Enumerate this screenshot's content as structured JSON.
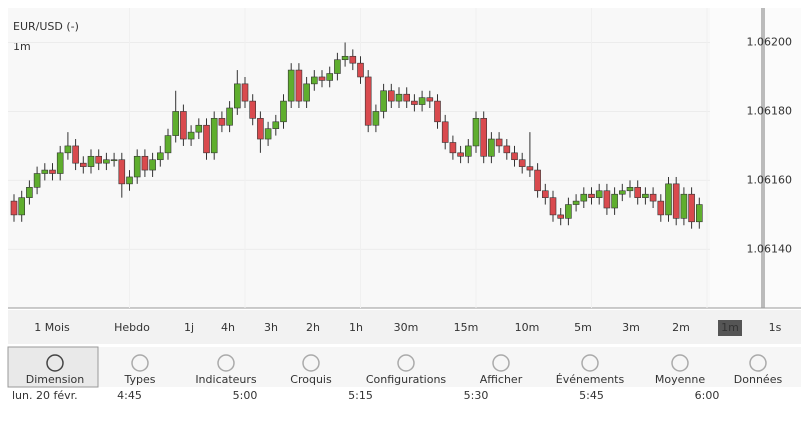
{
  "chart_data": {
    "type": "candlestick",
    "title": "EUR/USD (-)",
    "interval": "1m",
    "open": [
      1.06154,
      1.0615,
      1.06155,
      1.06158,
      1.06162,
      1.06163,
      1.06162,
      1.06168,
      1.0617,
      1.06165,
      1.06164,
      1.06167,
      1.06165,
      1.06166,
      1.06166,
      1.06159,
      1.06161,
      1.06167,
      1.06163,
      1.06166,
      1.06168,
      1.06173,
      1.0618,
      1.06172,
      1.06174,
      1.06176,
      1.06168,
      1.06178,
      1.06176,
      1.06181,
      1.06188,
      1.06183,
      1.06178,
      1.06172,
      1.06175,
      1.06177,
      1.06183,
      1.06192,
      1.06183,
      1.06188,
      1.0619,
      1.06189,
      1.06191,
      1.06195,
      1.06196,
      1.06194,
      1.0619,
      1.06176,
      1.0618,
      1.06186,
      1.06183,
      1.06185,
      1.06183,
      1.06182,
      1.06184,
      1.06183,
      1.06177,
      1.06171,
      1.06168,
      1.06167,
      1.0617,
      1.06178,
      1.06167,
      1.06172,
      1.0617,
      1.06168,
      1.06166,
      1.06164,
      1.06163,
      1.06157,
      1.06155,
      1.0615,
      1.06149,
      1.06153,
      1.06154,
      1.06156,
      1.06155,
      1.06157,
      1.06152,
      1.06156,
      1.06157,
      1.06158,
      1.06155,
      1.06156,
      1.06154,
      1.0615,
      1.06159,
      1.06149,
      1.06156,
      1.06148
    ],
    "high": [
      1.06156,
      1.06157,
      1.0616,
      1.06164,
      1.06165,
      1.06165,
      1.0617,
      1.06174,
      1.06172,
      1.06167,
      1.06169,
      1.06169,
      1.06168,
      1.06168,
      1.06168,
      1.06163,
      1.06169,
      1.06169,
      1.06168,
      1.0617,
      1.06175,
      1.06186,
      1.06182,
      1.06176,
      1.06178,
      1.06178,
      1.0618,
      1.0618,
      1.06183,
      1.06192,
      1.0619,
      1.06185,
      1.0618,
      1.06177,
      1.06179,
      1.06185,
      1.06194,
      1.06194,
      1.0619,
      1.06192,
      1.06192,
      1.06193,
      1.06197,
      1.062,
      1.06198,
      1.06196,
      1.06192,
      1.06182,
      1.06188,
      1.06188,
      1.06187,
      1.06187,
      1.06185,
      1.06186,
      1.06186,
      1.06185,
      1.06179,
      1.06173,
      1.0617,
      1.06172,
      1.0618,
      1.0618,
      1.06174,
      1.06174,
      1.06172,
      1.0617,
      1.06168,
      1.06174,
      1.06165,
      1.06159,
      1.06157,
      1.06152,
      1.06155,
      1.06156,
      1.06158,
      1.06158,
      1.06159,
      1.06159,
      1.06158,
      1.06159,
      1.0616,
      1.0616,
      1.06158,
      1.06158,
      1.06156,
      1.06161,
      1.06161,
      1.06158,
      1.06158,
      1.06155
    ],
    "low": [
      1.06148,
      1.06148,
      1.06153,
      1.06156,
      1.0616,
      1.0616,
      1.0616,
      1.06166,
      1.06163,
      1.06162,
      1.06162,
      1.06163,
      1.06163,
      1.06164,
      1.06155,
      1.06157,
      1.06159,
      1.06161,
      1.06161,
      1.06164,
      1.06166,
      1.06171,
      1.0617,
      1.0617,
      1.06172,
      1.06166,
      1.06166,
      1.06174,
      1.06174,
      1.06179,
      1.06181,
      1.06176,
      1.06168,
      1.0617,
      1.06173,
      1.06175,
      1.06181,
      1.06181,
      1.06181,
      1.06186,
      1.06187,
      1.06187,
      1.06189,
      1.06193,
      1.06192,
      1.06188,
      1.06174,
      1.06174,
      1.06178,
      1.06181,
      1.06181,
      1.06181,
      1.0618,
      1.0618,
      1.06181,
      1.06175,
      1.06169,
      1.06166,
      1.06165,
      1.06165,
      1.06168,
      1.06165,
      1.06165,
      1.06168,
      1.06166,
      1.06164,
      1.06162,
      1.06161,
      1.06155,
      1.06153,
      1.06148,
      1.06147,
      1.06147,
      1.06151,
      1.06152,
      1.06153,
      1.06153,
      1.0615,
      1.0615,
      1.06154,
      1.06155,
      1.06153,
      1.06153,
      1.06152,
      1.06148,
      1.06148,
      1.06147,
      1.06147,
      1.06146,
      1.06146
    ],
    "close": [
      1.0615,
      1.06155,
      1.06158,
      1.06162,
      1.06163,
      1.06162,
      1.06168,
      1.0617,
      1.06165,
      1.06164,
      1.06167,
      1.06165,
      1.06166,
      1.06166,
      1.06159,
      1.06161,
      1.06167,
      1.06163,
      1.06166,
      1.06168,
      1.06173,
      1.0618,
      1.06172,
      1.06174,
      1.06176,
      1.06168,
      1.06178,
      1.06176,
      1.06181,
      1.06188,
      1.06183,
      1.06178,
      1.06172,
      1.06175,
      1.06177,
      1.06183,
      1.06192,
      1.06183,
      1.06188,
      1.0619,
      1.06189,
      1.06191,
      1.06195,
      1.06196,
      1.06194,
      1.0619,
      1.06176,
      1.0618,
      1.06186,
      1.06183,
      1.06185,
      1.06183,
      1.06182,
      1.06184,
      1.06183,
      1.06177,
      1.06171,
      1.06168,
      1.06167,
      1.0617,
      1.06178,
      1.06167,
      1.06172,
      1.0617,
      1.06168,
      1.06166,
      1.06164,
      1.06163,
      1.06157,
      1.06155,
      1.0615,
      1.06149,
      1.06153,
      1.06154,
      1.06156,
      1.06155,
      1.06157,
      1.06152,
      1.06156,
      1.06157,
      1.06158,
      1.06155,
      1.06156,
      1.06154,
      1.0615,
      1.06159,
      1.06149,
      1.06156,
      1.06148,
      1.06153
    ],
    "up_color": "#5fae2e",
    "down_color": "#d94a4e",
    "ylim": [
      1.06123,
      1.0621
    ],
    "yticks": [
      {
        "value": 1.062,
        "label": "1.06200"
      },
      {
        "value": 1.0618,
        "label": "1.06180"
      },
      {
        "value": 1.0616,
        "label": "1.06160"
      },
      {
        "value": 1.0614,
        "label": "1.06140"
      }
    ],
    "xticks": [
      {
        "value": 15,
        "label": "4:45"
      },
      {
        "value": 30,
        "label": "5:00"
      },
      {
        "value": 45,
        "label": "5:15"
      },
      {
        "value": 60,
        "label": "5:30"
      },
      {
        "value": 75,
        "label": "5:45"
      },
      {
        "value": 90,
        "label": "6:00"
      }
    ],
    "date_label": "lun. 20 févr.",
    "grid": true
  },
  "periods": [
    "1 Mois",
    "Hebdo",
    "1j",
    "4h",
    "3h",
    "2h",
    "1h",
    "30m",
    "15m",
    "10m",
    "5m",
    "3m",
    "2m",
    "1m",
    "1s"
  ],
  "selected_period": "1m",
  "toolbar": [
    "Dimension",
    "Types",
    "Indicateurs",
    "Croquis",
    "Configurations",
    "Afficher",
    "Événements",
    "Moyenne",
    "Données"
  ]
}
